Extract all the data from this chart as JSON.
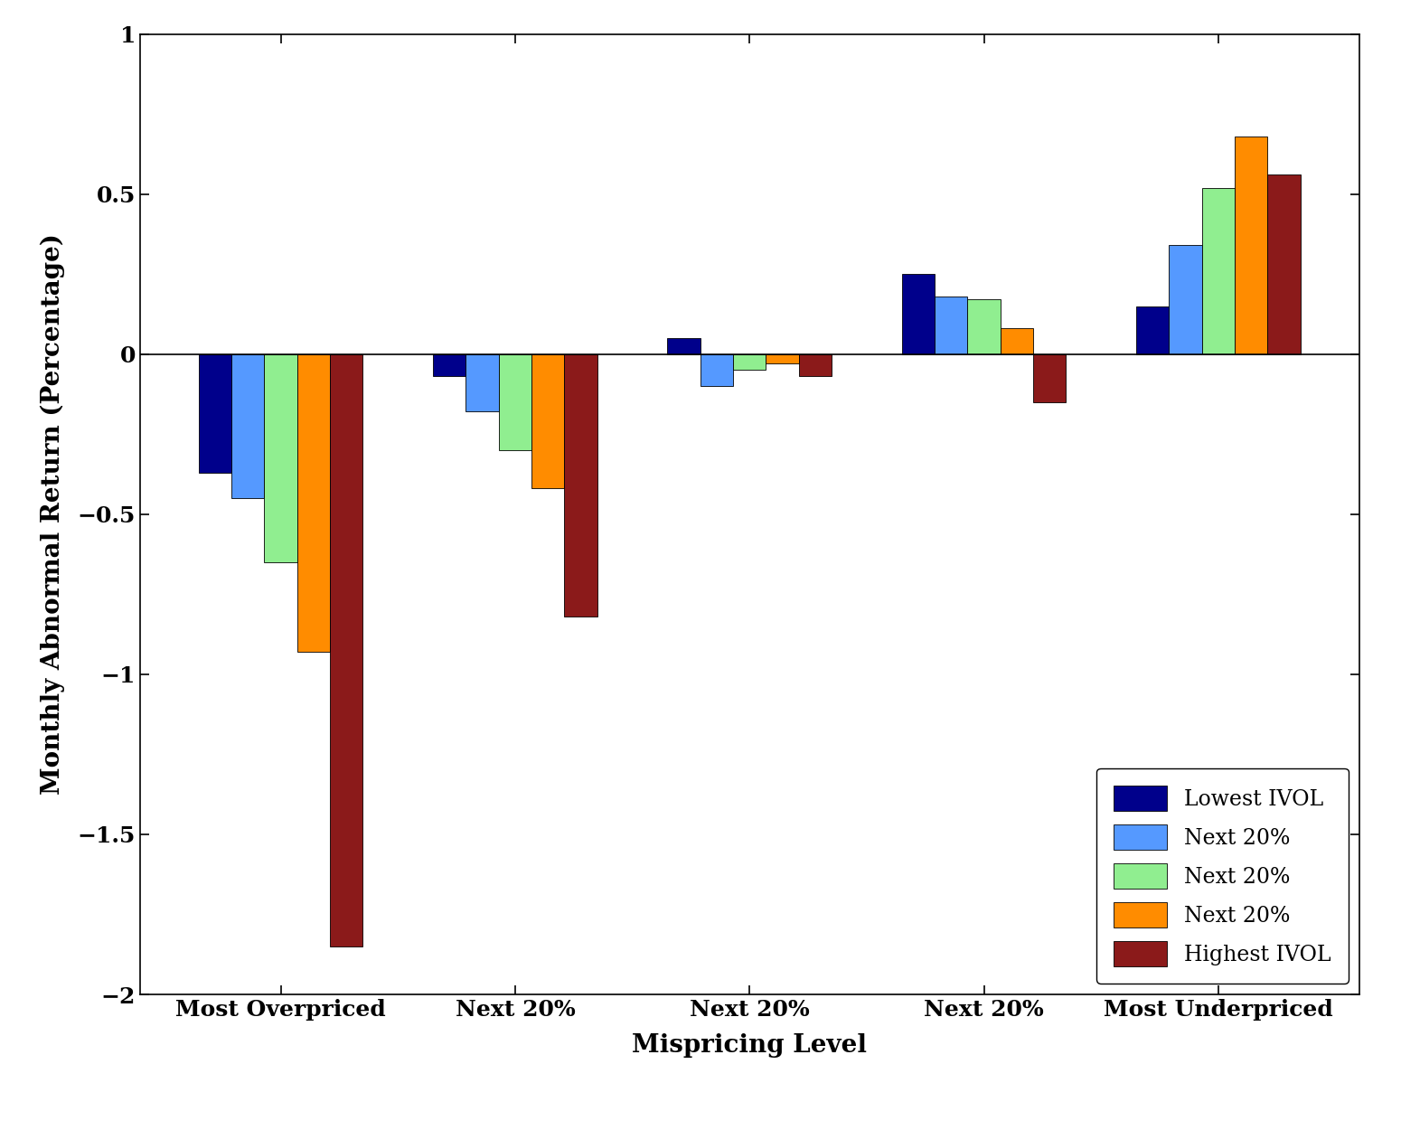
{
  "x_labels": [
    "Most Overpriced",
    "Next 20%",
    "Next 20%",
    "Next 20%",
    "Most Underpriced"
  ],
  "series": [
    {
      "label": "Lowest IVOL",
      "color": "#00008B",
      "values": [
        -0.37,
        -0.07,
        0.05,
        0.25,
        0.15
      ]
    },
    {
      "label": "Next 20%",
      "color": "#5599FF",
      "values": [
        -0.45,
        -0.18,
        -0.1,
        0.18,
        0.34
      ]
    },
    {
      "label": "Next 20%",
      "color": "#90EE90",
      "values": [
        -0.65,
        -0.3,
        -0.05,
        0.17,
        0.52
      ]
    },
    {
      "label": "Next 20%",
      "color": "#FF8C00",
      "values": [
        -0.93,
        -0.42,
        -0.03,
        0.08,
        0.68
      ]
    },
    {
      "label": "Highest IVOL",
      "color": "#8B1A1A",
      "values": [
        -1.85,
        -0.82,
        -0.07,
        -0.15,
        0.56
      ]
    }
  ],
  "ylabel": "Monthly Abnormal Return (Percentage)",
  "xlabel": "Mispricing Level",
  "ylim": [
    -2.0,
    1.0
  ],
  "ytick_vals": [
    -2.0,
    -1.5,
    -1.0,
    -0.5,
    0.0,
    0.5,
    1.0
  ],
  "ytick_labels": [
    "−2",
    "−1.5",
    "−1",
    "−0.5",
    "0",
    "0.5",
    "1"
  ],
  "bar_width": 0.14,
  "background_color": "#FFFFFF"
}
